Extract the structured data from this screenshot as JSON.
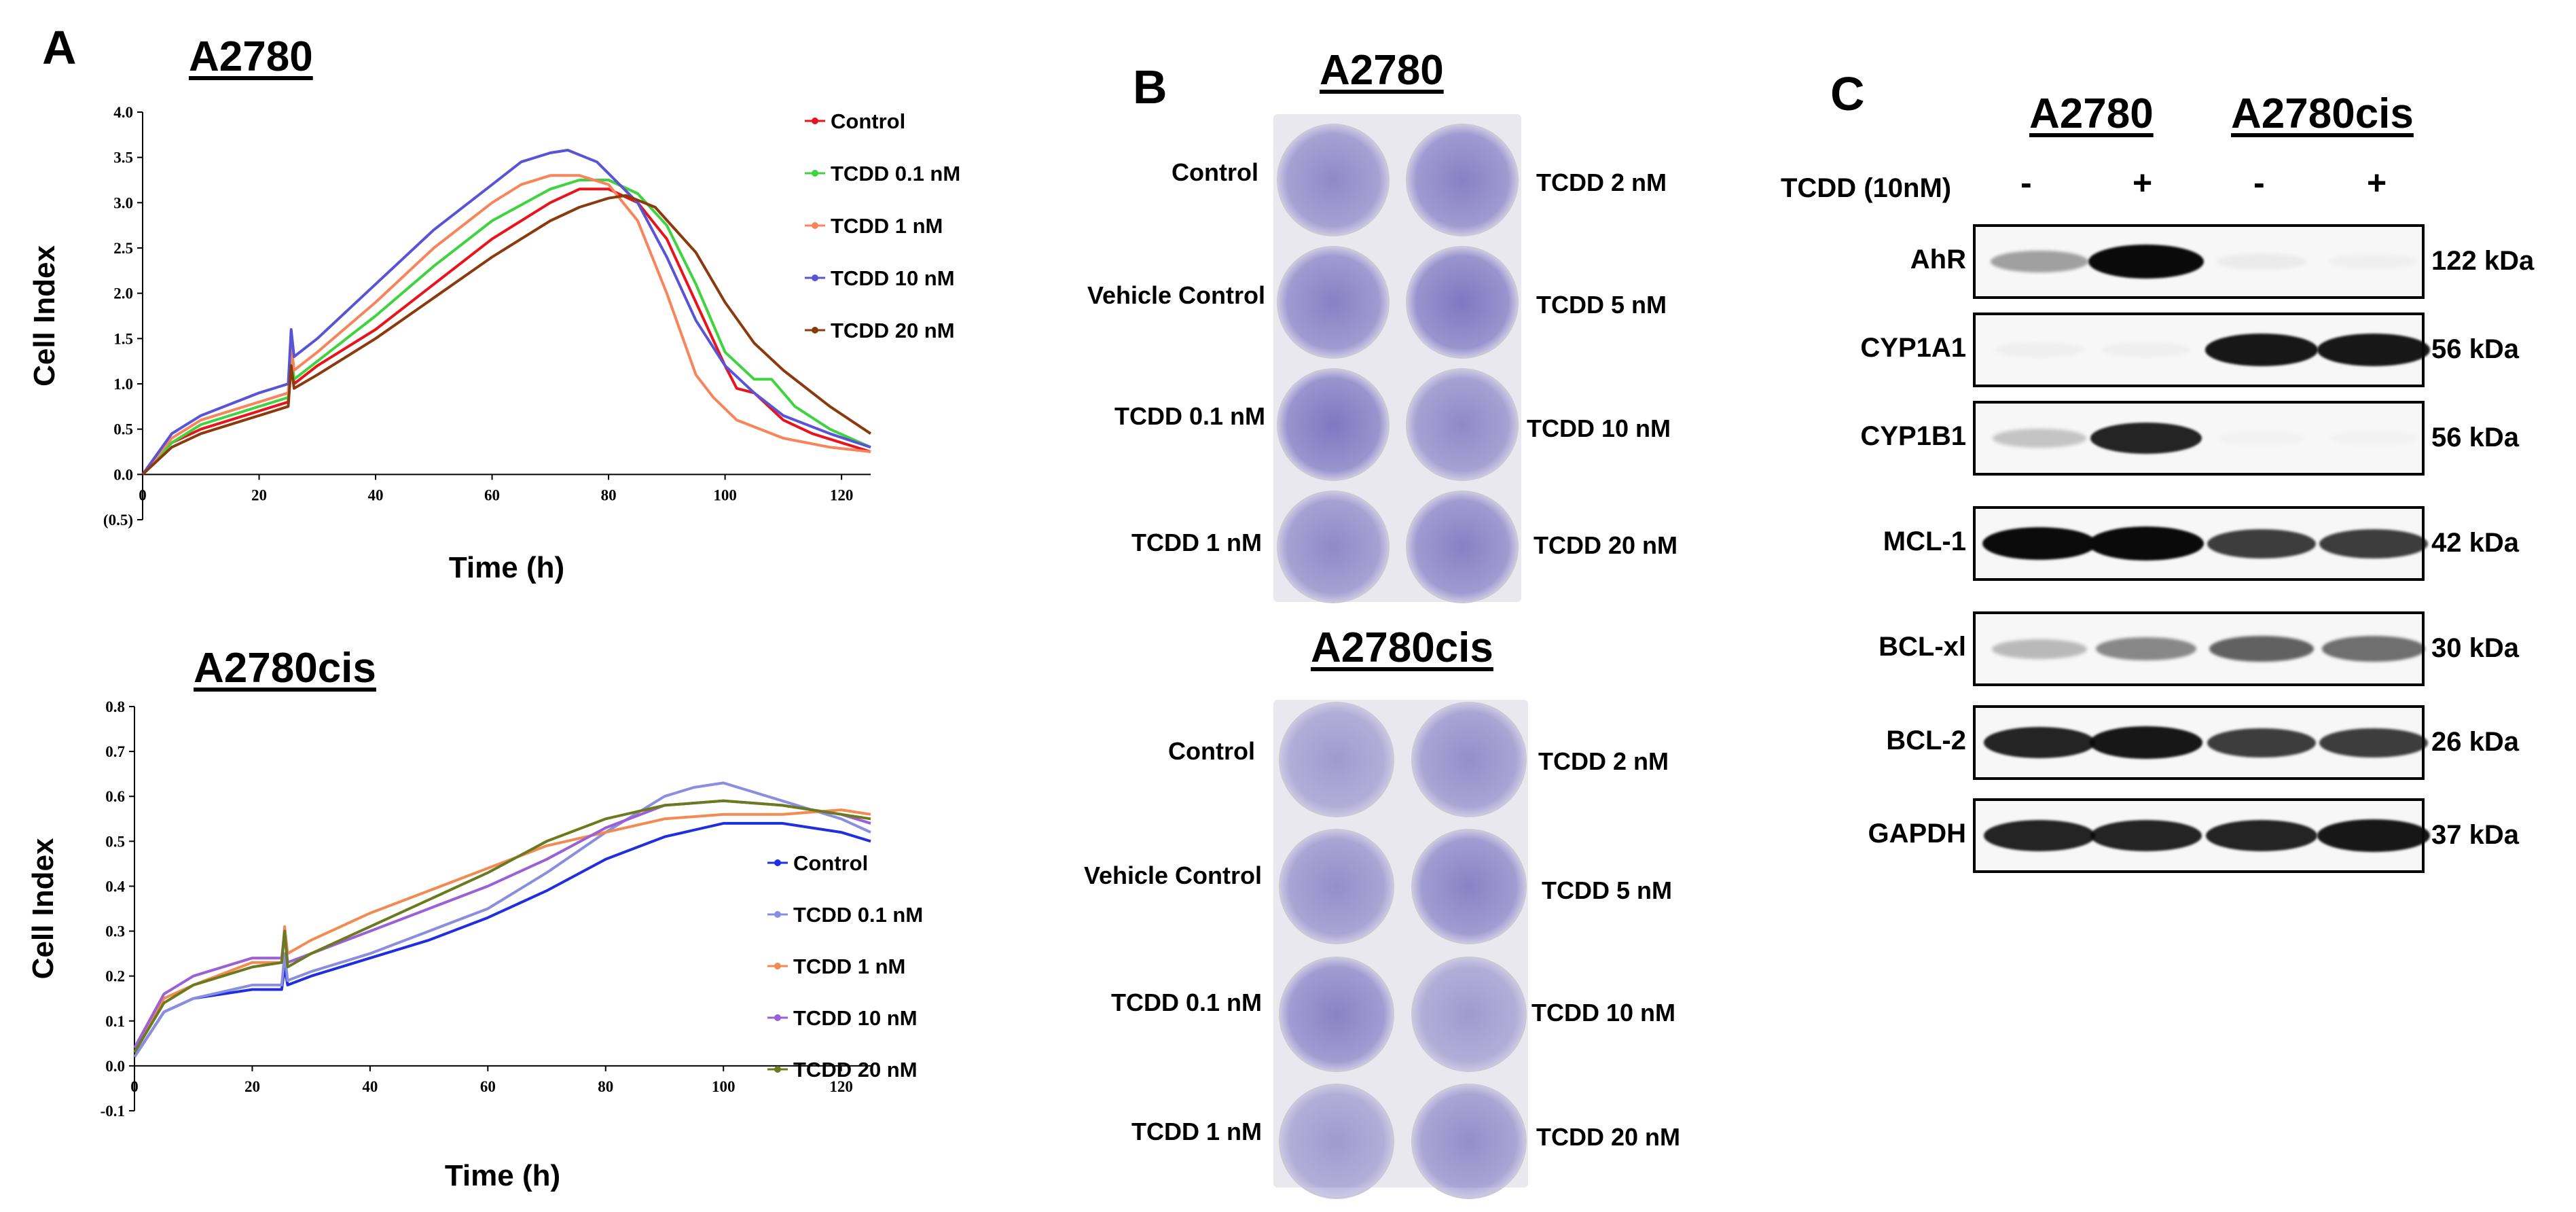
{
  "panel_a": {
    "letter": "A",
    "top_title": "A2780",
    "bottom_title": "A2780cis"
  },
  "panel_b": {
    "letter": "B",
    "top_title": "A2780",
    "bottom_title": "A2780cis",
    "left_labels": [
      "Control",
      "Vehicle Control",
      "TCDD 0.1 nM",
      "TCDD 1 nM"
    ],
    "right_labels": [
      "TCDD 2 nM",
      "TCDD 5 nM",
      "TCDD 10 nM",
      "TCDD 20 nM"
    ]
  },
  "panel_c": {
    "letter": "C",
    "col_group_1": "A2780",
    "col_group_2": "A2780cis",
    "treatment_label": "TCDD (10nM)",
    "signs": [
      "-",
      "+",
      "-",
      "+"
    ],
    "rows": [
      {
        "protein": "AhR",
        "mw": "122 kDa",
        "intensity": [
          0.35,
          1.0,
          0.05,
          0.03
        ]
      },
      {
        "protein": "CYP1A1",
        "mw": "56 kDa",
        "intensity": [
          0.03,
          0.03,
          0.9,
          0.9
        ]
      },
      {
        "protein": "CYP1B1",
        "mw": "56 kDa",
        "intensity": [
          0.2,
          0.85,
          0.02,
          0.02
        ]
      },
      {
        "protein": "MCL-1",
        "mw": "42 kDa",
        "intensity": [
          0.95,
          1.0,
          0.75,
          0.75
        ]
      },
      {
        "protein": "BCL-xl",
        "mw": "30 kDa",
        "intensity": [
          0.25,
          0.45,
          0.6,
          0.55
        ]
      },
      {
        "protein": "BCL-2",
        "mw": "26 kDa",
        "intensity": [
          0.85,
          0.9,
          0.75,
          0.75
        ]
      },
      {
        "protein": "GAPDH",
        "mw": "37 kDa",
        "intensity": [
          0.85,
          0.85,
          0.85,
          0.9
        ]
      }
    ]
  },
  "chart_data": [
    {
      "type": "line",
      "title": "A2780",
      "xlabel": "Time (h)",
      "ylabel": "Cell Index",
      "xlim": [
        0,
        125
      ],
      "ylim": [
        -0.5,
        4.0
      ],
      "xticks": [
        0,
        20,
        40,
        60,
        80,
        100,
        120
      ],
      "yticks": [
        -0.5,
        0.0,
        0.5,
        1.0,
        1.5,
        2.0,
        2.5,
        3.0,
        3.5,
        4.0
      ],
      "ytick_labels": [
        "(0.5)",
        "0.0",
        "0.5",
        "1.0",
        "1.5",
        "2.0",
        "2.5",
        "3.0",
        "3.5",
        "4.0"
      ],
      "legend_position": "top-right",
      "series": [
        {
          "name": "Control",
          "color": "#e8141b",
          "x": [
            0,
            5,
            10,
            20,
            25,
            25.5,
            26,
            30,
            40,
            50,
            60,
            70,
            75,
            80,
            85,
            90,
            95,
            100,
            102,
            105,
            110,
            115,
            120,
            125
          ],
          "y": [
            0.0,
            0.35,
            0.5,
            0.7,
            0.8,
            1.3,
            1.0,
            1.2,
            1.6,
            2.1,
            2.6,
            3.0,
            3.15,
            3.15,
            3.0,
            2.6,
            1.9,
            1.2,
            0.95,
            0.9,
            0.6,
            0.45,
            0.35,
            0.25
          ]
        },
        {
          "name": "TCDD 0.1 nM",
          "color": "#3fd33f",
          "x": [
            0,
            5,
            10,
            20,
            25,
            25.5,
            26,
            30,
            40,
            50,
            60,
            70,
            75,
            80,
            85,
            90,
            95,
            100,
            105,
            108,
            112,
            118,
            125
          ],
          "y": [
            0.0,
            0.35,
            0.55,
            0.75,
            0.85,
            1.35,
            1.05,
            1.25,
            1.75,
            2.3,
            2.8,
            3.15,
            3.25,
            3.25,
            3.1,
            2.75,
            2.1,
            1.35,
            1.05,
            1.05,
            0.75,
            0.5,
            0.3
          ]
        },
        {
          "name": "TCDD 1 nM",
          "color": "#f7845a",
          "x": [
            0,
            5,
            10,
            20,
            25,
            25.5,
            26,
            30,
            40,
            50,
            60,
            65,
            70,
            75,
            80,
            85,
            90,
            95,
            98,
            102,
            110,
            118,
            125
          ],
          "y": [
            0.0,
            0.4,
            0.6,
            0.8,
            0.9,
            1.45,
            1.15,
            1.35,
            1.9,
            2.5,
            3.0,
            3.2,
            3.3,
            3.3,
            3.2,
            2.8,
            2.0,
            1.1,
            0.85,
            0.6,
            0.4,
            0.3,
            0.25
          ]
        },
        {
          "name": "TCDD 10 nM",
          "color": "#5954d6",
          "x": [
            0,
            5,
            10,
            20,
            25,
            25.5,
            26,
            30,
            40,
            50,
            60,
            65,
            70,
            73,
            78,
            85,
            90,
            95,
            100,
            105,
            110,
            118,
            125
          ],
          "y": [
            0.0,
            0.45,
            0.65,
            0.9,
            1.0,
            1.6,
            1.3,
            1.5,
            2.1,
            2.7,
            3.2,
            3.45,
            3.55,
            3.58,
            3.45,
            3.0,
            2.4,
            1.7,
            1.2,
            0.9,
            0.65,
            0.45,
            0.3
          ]
        },
        {
          "name": "TCDD 20 nM",
          "color": "#8b3a0e",
          "x": [
            0,
            5,
            10,
            20,
            25,
            25.5,
            26,
            30,
            40,
            50,
            60,
            70,
            75,
            80,
            83,
            88,
            95,
            100,
            105,
            110,
            118,
            125
          ],
          "y": [
            0.0,
            0.3,
            0.45,
            0.65,
            0.75,
            1.2,
            0.95,
            1.1,
            1.5,
            1.95,
            2.4,
            2.8,
            2.95,
            3.05,
            3.08,
            2.95,
            2.45,
            1.9,
            1.45,
            1.15,
            0.75,
            0.45
          ]
        }
      ]
    },
    {
      "type": "line",
      "title": "A2780cis",
      "xlabel": "Time (h)",
      "ylabel": "Cell Index",
      "xlim": [
        0,
        125
      ],
      "ylim": [
        -0.1,
        0.8
      ],
      "xticks": [
        0,
        20,
        40,
        60,
        80,
        100,
        120
      ],
      "yticks": [
        -0.1,
        0.0,
        0.1,
        0.2,
        0.3,
        0.4,
        0.5,
        0.6,
        0.7,
        0.8
      ],
      "ytick_labels": [
        "-0.1",
        "0.0",
        "0.1",
        "0.2",
        "0.3",
        "0.4",
        "0.5",
        "0.6",
        "0.7",
        "0.8"
      ],
      "legend_position": "center-right",
      "series": [
        {
          "name": "Control",
          "color": "#1f2ee0",
          "x": [
            0,
            5,
            10,
            20,
            25,
            25.5,
            26,
            30,
            40,
            50,
            60,
            70,
            80,
            90,
            100,
            110,
            120,
            125
          ],
          "y": [
            0.02,
            0.12,
            0.15,
            0.17,
            0.17,
            0.22,
            0.18,
            0.2,
            0.24,
            0.28,
            0.33,
            0.39,
            0.46,
            0.51,
            0.54,
            0.54,
            0.52,
            0.5
          ]
        },
        {
          "name": "TCDD 0.1 nM",
          "color": "#8a8ee0",
          "x": [
            0,
            5,
            10,
            20,
            25,
            25.5,
            26,
            30,
            40,
            50,
            60,
            70,
            80,
            90,
            95,
            100,
            110,
            120,
            125
          ],
          "y": [
            0.02,
            0.12,
            0.15,
            0.18,
            0.18,
            0.25,
            0.19,
            0.21,
            0.25,
            0.3,
            0.35,
            0.43,
            0.52,
            0.6,
            0.62,
            0.63,
            0.59,
            0.55,
            0.52
          ]
        },
        {
          "name": "TCDD 1 nM",
          "color": "#f28a52",
          "x": [
            0,
            5,
            10,
            20,
            25,
            25.5,
            26,
            30,
            40,
            50,
            60,
            70,
            80,
            90,
            100,
            110,
            120,
            125
          ],
          "y": [
            0.03,
            0.15,
            0.18,
            0.23,
            0.23,
            0.31,
            0.25,
            0.28,
            0.34,
            0.39,
            0.44,
            0.49,
            0.52,
            0.55,
            0.56,
            0.56,
            0.57,
            0.56
          ]
        },
        {
          "name": "TCDD 10 nM",
          "color": "#9b5fd6",
          "x": [
            0,
            5,
            10,
            20,
            25,
            25.5,
            26,
            30,
            40,
            50,
            60,
            70,
            80,
            90,
            100,
            110,
            120,
            125
          ],
          "y": [
            0.04,
            0.16,
            0.2,
            0.24,
            0.24,
            0.3,
            0.23,
            0.25,
            0.3,
            0.35,
            0.4,
            0.46,
            0.53,
            0.58,
            0.59,
            0.58,
            0.56,
            0.54
          ]
        },
        {
          "name": "TCDD 20 nM",
          "color": "#6b7a1e",
          "x": [
            0,
            5,
            10,
            20,
            25,
            25.5,
            26,
            30,
            40,
            50,
            60,
            70,
            80,
            90,
            100,
            110,
            120,
            125
          ],
          "y": [
            0.03,
            0.14,
            0.18,
            0.22,
            0.23,
            0.3,
            0.22,
            0.25,
            0.31,
            0.37,
            0.43,
            0.5,
            0.55,
            0.58,
            0.59,
            0.58,
            0.56,
            0.55
          ]
        }
      ]
    }
  ]
}
